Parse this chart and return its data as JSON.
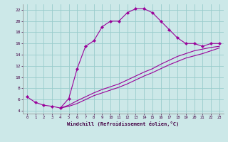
{
  "xlabel": "Windchill (Refroidissement éolien,°C)",
  "bg_color": "#cce8e8",
  "grid_color": "#99cccc",
  "line_color": "#990099",
  "xlim": [
    -0.5,
    23.5
  ],
  "ylim": [
    3.5,
    23.0
  ],
  "xticks": [
    0,
    1,
    2,
    3,
    4,
    5,
    6,
    7,
    8,
    9,
    10,
    11,
    12,
    13,
    14,
    15,
    16,
    17,
    18,
    19,
    20,
    21,
    22,
    23
  ],
  "yticks": [
    4,
    6,
    8,
    10,
    12,
    14,
    16,
    18,
    20,
    22
  ],
  "curve1_x": [
    0,
    1,
    2,
    3,
    4,
    5,
    6,
    7,
    8,
    9,
    10,
    11,
    12,
    13,
    14,
    15,
    16,
    17,
    18,
    19,
    20,
    21,
    22,
    23
  ],
  "curve1_y": [
    6.5,
    5.5,
    5.0,
    4.8,
    4.5,
    6.2,
    11.5,
    15.5,
    16.5,
    19.0,
    20.0,
    20.0,
    21.5,
    22.2,
    22.2,
    21.5,
    20.0,
    18.5,
    17.0,
    16.0,
    16.0,
    15.5,
    16.0,
    16.0
  ],
  "curve2_x": [
    4,
    5,
    6,
    7,
    8,
    9,
    10,
    11,
    12,
    13,
    14,
    15,
    16,
    17,
    18,
    19,
    20,
    21,
    22,
    23
  ],
  "curve2_y": [
    4.5,
    5.0,
    5.8,
    6.5,
    7.2,
    7.8,
    8.3,
    8.8,
    9.5,
    10.2,
    10.9,
    11.5,
    12.3,
    13.0,
    13.7,
    14.2,
    14.7,
    15.0,
    15.3,
    15.5
  ],
  "curve3_x": [
    4,
    5,
    6,
    7,
    8,
    9,
    10,
    11,
    12,
    13,
    14,
    15,
    16,
    17,
    18,
    19,
    20,
    21,
    22,
    23
  ],
  "curve3_y": [
    4.5,
    4.8,
    5.3,
    6.0,
    6.7,
    7.2,
    7.7,
    8.2,
    8.8,
    9.5,
    10.2,
    10.8,
    11.5,
    12.2,
    12.8,
    13.4,
    13.8,
    14.2,
    14.7,
    15.2
  ]
}
